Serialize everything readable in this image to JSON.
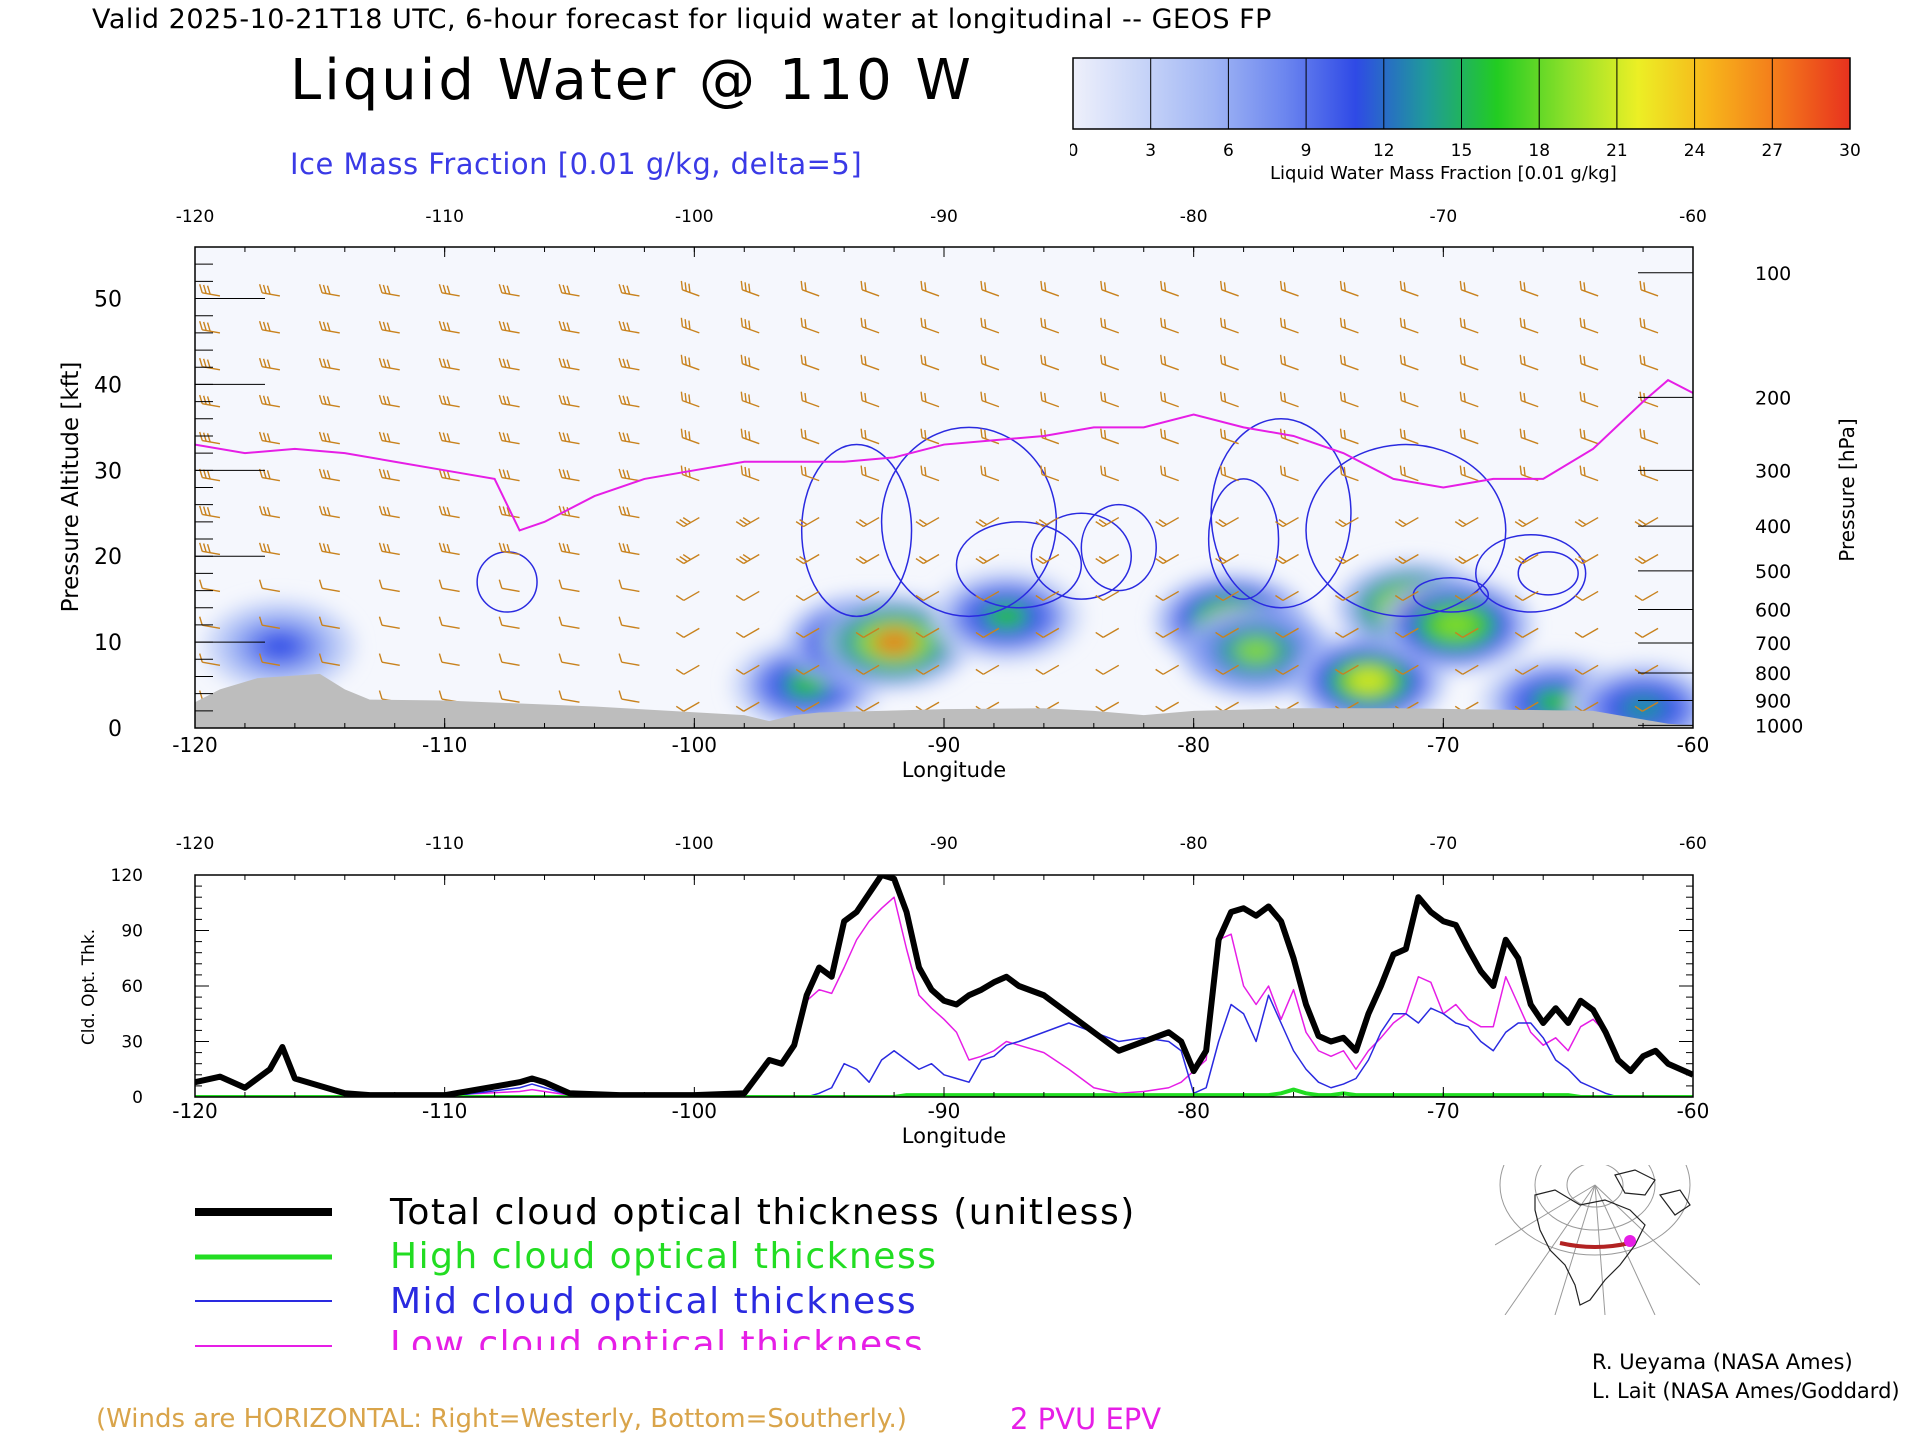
{
  "header": {
    "valid_line": "Valid 2025-10-21T18 UTC, 6-hour forecast for liquid water at longitudinal -- GEOS FP",
    "title": "Liquid Water @ 110 W",
    "ice_label": "Ice Mass Fraction [0.01 g/kg, delta=5]"
  },
  "colorbar": {
    "ticks": [
      "0",
      "3",
      "6",
      "9",
      "12",
      "15",
      "18",
      "21",
      "24",
      "27",
      "30"
    ],
    "label": "Liquid Water Mass Fraction [0.01 g/kg]",
    "colors": [
      "#eef0fb",
      "#c7d4f8",
      "#9fb4f4",
      "#6c86ef",
      "#2f4ae6",
      "#1f9a9a",
      "#22cc22",
      "#8ee02a",
      "#ecef25",
      "#f7b51b",
      "#f3781b",
      "#e8321e"
    ]
  },
  "colors": {
    "total": "#000000",
    "high": "#22dd22",
    "mid": "#2a2ae0",
    "low": "#e61ee6",
    "barbs": "#c8821e",
    "terrain": "#bdbdbd",
    "ice": "#2a2ae0"
  },
  "chart_data": [
    {
      "type": "heatmap",
      "title": "Liquid Water @ 110 W",
      "xlabel": "Longitude",
      "ylabel": "Pressure Altitude [kft]",
      "y2label": "Pressure [hPa]",
      "xlim": [
        -120,
        -60
      ],
      "ylim": [
        0,
        56
      ],
      "x_ticks": [
        "-120",
        "-110",
        "-100",
        "-90",
        "-80",
        "-70",
        "-60"
      ],
      "y_ticks": [
        "0",
        "10",
        "20",
        "30",
        "40",
        "50"
      ],
      "pressure_ticks": [
        "100",
        "200",
        "300",
        "400",
        "500",
        "600",
        "700",
        "800",
        "900",
        "1000"
      ],
      "pressure_tick_kft": [
        53,
        38.5,
        30,
        23.5,
        18.3,
        13.8,
        9.9,
        6.4,
        3.2,
        0.3
      ],
      "liquid_water_blobs": [
        {
          "lon": -116.6,
          "alt": 9.5,
          "peak": 12
        },
        {
          "lon": -95.5,
          "alt": 5,
          "peak": 15
        },
        {
          "lon": -93.3,
          "alt": 10,
          "peak": 20
        },
        {
          "lon": -92,
          "alt": 10,
          "peak": 27
        },
        {
          "lon": -87.5,
          "alt": 13,
          "peak": 15
        },
        {
          "lon": -78.5,
          "alt": 12.5,
          "peak": 21
        },
        {
          "lon": -77.5,
          "alt": 9,
          "peak": 18
        },
        {
          "lon": -73,
          "alt": 5.5,
          "peak": 22
        },
        {
          "lon": -71.2,
          "alt": 14,
          "peak": 26
        },
        {
          "lon": -69.5,
          "alt": 12,
          "peak": 20
        },
        {
          "lon": -65.5,
          "alt": 3,
          "peak": 16
        },
        {
          "lon": -62,
          "alt": 2.3,
          "peak": 14
        }
      ],
      "epv_2pvu": {
        "x": [
          -120,
          -118,
          -116,
          -114,
          -112,
          -110,
          -108,
          -107,
          -106,
          -104,
          -102,
          -100,
          -98,
          -96,
          -94,
          -92,
          -90,
          -88,
          -86,
          -84,
          -82,
          -80,
          -78,
          -76,
          -74,
          -72,
          -70,
          -68,
          -66,
          -64,
          -62,
          -61,
          -60
        ],
        "y": [
          33,
          32,
          32.5,
          32,
          31,
          30,
          29,
          23,
          24,
          27,
          29,
          30,
          31,
          31,
          31,
          31.5,
          33,
          33.5,
          34,
          35,
          35,
          36.5,
          35,
          34,
          32,
          29,
          28,
          29,
          29,
          32.5,
          38,
          40.5,
          39
        ]
      },
      "terrain": {
        "x": [
          -120,
          -119,
          -117.5,
          -115,
          -114,
          -113,
          -110,
          -104,
          -98,
          -97,
          -96,
          -95,
          -90,
          -86,
          -84,
          -82,
          -80,
          -76,
          -72,
          -64,
          -61,
          -60
        ],
        "y": [
          3,
          4.5,
          5.8,
          6.3,
          4.5,
          3.3,
          3.2,
          2.5,
          1.5,
          0.8,
          1.5,
          1.8,
          2.2,
          2.3,
          2.0,
          1.5,
          2.0,
          2.3,
          2.3,
          2.0,
          0.5,
          0.3
        ]
      },
      "ice_contours": [
        {
          "lon": -107.5,
          "alt": 17,
          "rx": 1.2,
          "ry": 3.5
        },
        {
          "lon": -93.5,
          "alt": 23,
          "rx": 2.2,
          "ry": 10
        },
        {
          "lon": -89,
          "alt": 24,
          "rx": 3.5,
          "ry": 11
        },
        {
          "lon": -87,
          "alt": 19,
          "rx": 2.5,
          "ry": 5
        },
        {
          "lon": -84.5,
          "alt": 20,
          "rx": 2.0,
          "ry": 5
        },
        {
          "lon": -83,
          "alt": 21,
          "rx": 1.5,
          "ry": 5
        },
        {
          "lon": -78,
          "alt": 22,
          "rx": 1.4,
          "ry": 7
        },
        {
          "lon": -76.5,
          "alt": 25,
          "rx": 2.8,
          "ry": 11
        },
        {
          "lon": -71.5,
          "alt": 23,
          "rx": 4,
          "ry": 10
        },
        {
          "lon": -69.7,
          "alt": 15.5,
          "rx": 1.5,
          "ry": 2
        },
        {
          "lon": -66.5,
          "alt": 18,
          "rx": 2.2,
          "ry": 4.5
        },
        {
          "lon": -65.8,
          "alt": 18,
          "rx": 1.2,
          "ry": 2.5
        }
      ]
    },
    {
      "type": "line",
      "xlabel": "Longitude",
      "ylabel": "Cld. Opt. Thk.",
      "xlim": [
        -120,
        -60
      ],
      "ylim": [
        0,
        120
      ],
      "x_ticks": [
        "-120",
        "-110",
        "-100",
        "-90",
        "-80",
        "-70",
        "-60"
      ],
      "y_ticks": [
        "0",
        "30",
        "60",
        "90",
        "120"
      ],
      "x": [
        -120,
        -119,
        -118,
        -117,
        -116.5,
        -116,
        -115,
        -114,
        -113,
        -110,
        -107,
        -106.5,
        -106,
        -105,
        -103,
        -100,
        -98,
        -97,
        -96.5,
        -96,
        -95.5,
        -95,
        -94.5,
        -94,
        -93.5,
        -93,
        -92.5,
        -92,
        -91.5,
        -91,
        -90.5,
        -90,
        -89.5,
        -89,
        -88.5,
        -88,
        -87.5,
        -87,
        -86,
        -85,
        -84,
        -83,
        -82,
        -81,
        -80.5,
        -80,
        -79.5,
        -79,
        -78.5,
        -78,
        -77.5,
        -77,
        -76.5,
        -76,
        -75.5,
        -75,
        -74.5,
        -74,
        -73.5,
        -73,
        -72.5,
        -72,
        -71.5,
        -71,
        -70.5,
        -70,
        -69.5,
        -69,
        -68.5,
        -68,
        -67.5,
        -67,
        -66.5,
        -66,
        -65.5,
        -65,
        -64.5,
        -64,
        -63.5,
        -63,
        -62.5,
        -62,
        -61.5,
        -61,
        -60
      ],
      "series": [
        {
          "name": "Total cloud optical thickness (unitless)",
          "color": "#000000",
          "width": 6,
          "values": [
            8,
            11,
            5,
            15,
            27,
            10,
            6,
            2,
            1,
            1,
            8,
            10,
            8,
            2,
            1,
            1,
            2,
            20,
            18,
            28,
            55,
            70,
            65,
            95,
            100,
            110,
            120,
            118,
            100,
            70,
            58,
            52,
            50,
            55,
            58,
            62,
            65,
            60,
            55,
            45,
            35,
            25,
            30,
            35,
            30,
            14,
            25,
            85,
            100,
            102,
            98,
            103,
            95,
            75,
            50,
            33,
            30,
            32,
            25,
            45,
            60,
            77,
            80,
            108,
            100,
            95,
            93,
            80,
            68,
            60,
            85,
            75,
            50,
            40,
            48,
            40,
            52,
            47,
            35,
            20,
            14,
            22,
            25,
            18,
            12
          ]
        },
        {
          "name": "High cloud optical thickness",
          "color": "#22dd22",
          "width": 4,
          "values": [
            0,
            0,
            0,
            0,
            0,
            0,
            0,
            0,
            0,
            0,
            0,
            0,
            0,
            0,
            0,
            0,
            0,
            0,
            0,
            0,
            0,
            0,
            0,
            0,
            0,
            0,
            0,
            0,
            1,
            1,
            1,
            1,
            1,
            1,
            1,
            1,
            1,
            1,
            1,
            1,
            1,
            1,
            1,
            1,
            1,
            1,
            1,
            1,
            1,
            1,
            1,
            1,
            2,
            4,
            2,
            1,
            1,
            2,
            1,
            1,
            1,
            1,
            1,
            1,
            1,
            1,
            1,
            1,
            1,
            1,
            1,
            1,
            1,
            1,
            1,
            1,
            0,
            0,
            0,
            0,
            0,
            0,
            0,
            0,
            0
          ]
        },
        {
          "name": "Mid cloud optical thickness",
          "color": "#2a2ae0",
          "width": 1.5,
          "values": [
            0,
            0,
            0,
            0,
            0,
            0,
            0,
            0,
            0,
            0,
            5,
            7,
            5,
            1,
            1,
            0,
            0,
            0,
            0,
            0,
            0,
            2,
            5,
            18,
            15,
            8,
            20,
            25,
            20,
            15,
            18,
            12,
            10,
            8,
            20,
            22,
            28,
            30,
            35,
            40,
            35,
            30,
            32,
            30,
            25,
            2,
            5,
            30,
            50,
            45,
            30,
            55,
            40,
            25,
            15,
            8,
            5,
            7,
            10,
            20,
            35,
            45,
            45,
            40,
            48,
            45,
            40,
            38,
            30,
            25,
            35,
            40,
            40,
            32,
            20,
            15,
            8,
            5,
            2,
            0,
            0,
            0,
            0,
            0,
            0
          ]
        },
        {
          "name": "Low cloud optical thickness",
          "color": "#e61ee6",
          "width": 1.5,
          "values": [
            8,
            11,
            5,
            15,
            27,
            10,
            6,
            2,
            1,
            1,
            3,
            4,
            3,
            1,
            0,
            1,
            2,
            20,
            18,
            28,
            52,
            58,
            56,
            70,
            85,
            95,
            102,
            108,
            80,
            55,
            48,
            42,
            35,
            20,
            22,
            25,
            30,
            28,
            24,
            15,
            5,
            2,
            3,
            5,
            8,
            14,
            20,
            85,
            88,
            60,
            50,
            60,
            42,
            58,
            35,
            25,
            22,
            25,
            15,
            25,
            32,
            40,
            45,
            65,
            62,
            45,
            50,
            42,
            38,
            38,
            65,
            50,
            35,
            28,
            32,
            25,
            38,
            42,
            35,
            20,
            14,
            22,
            25,
            18,
            12
          ]
        }
      ]
    }
  ],
  "legend": {
    "total": "Total cloud optical thickness (unitless)",
    "high": "High cloud optical thickness",
    "mid": "Mid cloud optical thickness",
    "low": "Low cloud optical thickness"
  },
  "notes": {
    "winds": "(Winds are HORIZONTAL: Right=Westerly, Bottom=Southerly.)",
    "pvu": "2 PVU EPV"
  },
  "credits": {
    "line1": "R. Ueyama (NASA Ames)",
    "line2": "L. Lait (NASA Ames/Goddard)"
  }
}
